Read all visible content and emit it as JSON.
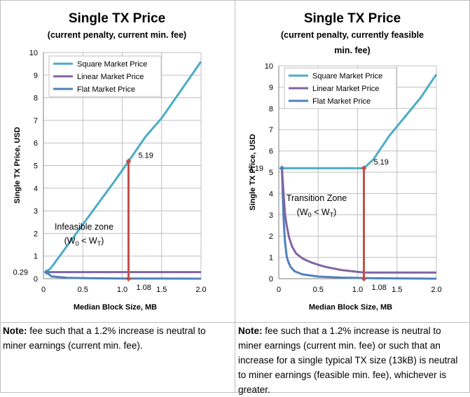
{
  "chart_data": [
    {
      "type": "line",
      "title": "Single TX Price",
      "subtitle": [
        "(current penalty, current min. fee)"
      ],
      "xlabel": "Median Block Size, MB",
      "ylabel": "Single TX Price, USD",
      "xlim": [
        0,
        2.0
      ],
      "ylim": [
        0,
        10
      ],
      "xticks": [
        "0",
        "0.5",
        "1.0",
        "1.5",
        "2.0"
      ],
      "yticks": [
        "0",
        "1",
        "2",
        "3",
        "4",
        "5",
        "6",
        "7",
        "8",
        "9",
        "10"
      ],
      "grid": true,
      "legend_position": "top-left",
      "series": [
        {
          "name": "Square Market Price",
          "color": "#4bacc6",
          "x": [
            0.04,
            0.1,
            0.3,
            0.5,
            0.7,
            0.9,
            1.08,
            1.3,
            1.5,
            1.7,
            2.0
          ],
          "y": [
            0.29,
            0.5,
            1.45,
            2.4,
            3.35,
            4.3,
            5.19,
            6.3,
            7.1,
            8.1,
            9.6
          ]
        },
        {
          "name": "Linear Market Price",
          "color": "#8064a2",
          "x": [
            0.04,
            2.0
          ],
          "y": [
            0.29,
            0.29
          ]
        },
        {
          "name": "Flat Market Price",
          "color": "#4f81bd",
          "x": [
            0.04,
            0.1,
            0.3,
            0.6,
            1.0,
            2.0
          ],
          "y": [
            0.29,
            0.1,
            0.04,
            0.02,
            0.01,
            0.0
          ]
        }
      ],
      "marker": {
        "x": 1.08,
        "y": 5.19,
        "color": "#c0504d",
        "label_y": "5.19",
        "label_x": "1.08"
      },
      "y_annotation": {
        "x": 0.04,
        "y": 0.29,
        "label": "0.29"
      },
      "zone": {
        "label": "Infeasible zone",
        "formula": [
          "(W",
          "0",
          " < W",
          "T",
          ")"
        ]
      }
    },
    {
      "type": "line",
      "title": "Single TX Price",
      "subtitle": [
        "(current penalty, currently feasible",
        "min. fee)"
      ],
      "xlabel": "Median Block Size, MB",
      "ylabel": "Single TX Price, USD",
      "xlim": [
        0,
        2.0
      ],
      "ylim": [
        0,
        10
      ],
      "xticks": [
        "0",
        "0.5",
        "1.0",
        "1.5",
        "2.0"
      ],
      "yticks": [
        "0",
        "1",
        "2",
        "3",
        "4",
        "5",
        "6",
        "7",
        "8",
        "9",
        "10"
      ],
      "grid": true,
      "legend_position": "top-right",
      "series": [
        {
          "name": "Square Market Price",
          "color": "#4bacc6",
          "x": [
            0.04,
            1.08,
            1.2,
            1.4,
            1.6,
            1.8,
            2.0
          ],
          "y": [
            5.19,
            5.19,
            5.6,
            6.7,
            7.6,
            8.5,
            9.6
          ]
        },
        {
          "name": "Linear Market Price",
          "color": "#8064a2",
          "x": [
            0.04,
            0.06,
            0.08,
            0.1,
            0.13,
            0.17,
            0.22,
            0.3,
            0.4,
            0.5,
            0.6,
            0.8,
            1.0,
            1.08,
            1.3,
            2.0
          ],
          "y": [
            5.19,
            4.0,
            3.0,
            2.5,
            1.95,
            1.5,
            1.18,
            0.95,
            0.78,
            0.65,
            0.55,
            0.4,
            0.32,
            0.29,
            0.29,
            0.29
          ]
        },
        {
          "name": "Flat Market Price",
          "color": "#4f81bd",
          "x": [
            0.04,
            0.05,
            0.06,
            0.07,
            0.08,
            0.1,
            0.12,
            0.15,
            0.2,
            0.3,
            0.5,
            0.8,
            1.2,
            2.0
          ],
          "y": [
            5.19,
            4.0,
            2.9,
            2.2,
            1.7,
            1.05,
            0.8,
            0.55,
            0.35,
            0.2,
            0.1,
            0.05,
            0.02,
            0.0
          ]
        }
      ],
      "marker": {
        "x": 1.08,
        "y": 5.19,
        "color": "#c0504d",
        "label_y": "5.19",
        "label_x": "1.08"
      },
      "y_annotation": {
        "x": 0.04,
        "y": 5.19,
        "label": "5.19"
      },
      "zone": {
        "label": "Transition Zone",
        "formula": [
          "(W",
          "0",
          " < W",
          "T",
          ")"
        ]
      }
    }
  ],
  "notes": [
    {
      "label": "Note:",
      "text": " fee such that a 1.2% increase is neutral to miner earnings (current min. fee)."
    },
    {
      "label": "Note:",
      "text": " fee such that a 1.2% increase is neutral to miner earnings (current min. fee) or such that an increase for a single typical TX size (13kB) is neutral to miner earnings (feasible min. fee), whichever is greater."
    }
  ]
}
